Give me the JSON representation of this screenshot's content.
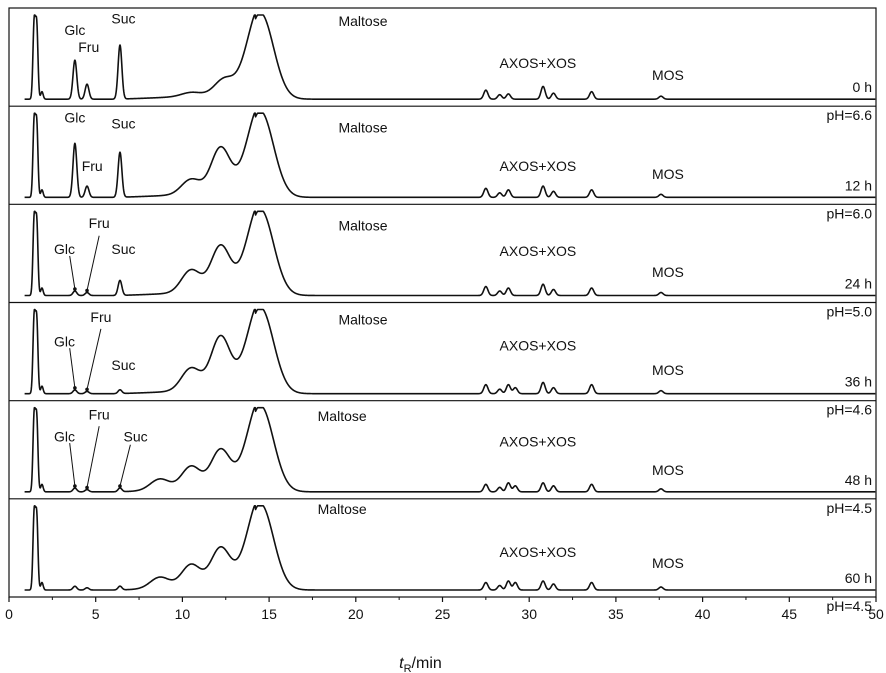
{
  "chart_data": {
    "type": "line",
    "xlabel": {
      "main": "t",
      "sub": "R",
      "unit": "/min"
    },
    "xlim": [
      0,
      50
    ],
    "x_ticks": [
      0,
      5,
      10,
      15,
      20,
      25,
      30,
      35,
      40,
      45,
      50
    ],
    "grid": false,
    "line_color": "#111111",
    "panels": [
      {
        "time_label": "0 h",
        "ph_label": "pH=6.6",
        "peaks": [
          [
            1.45,
            1.0
          ],
          [
            1.6,
            0.96
          ],
          [
            1.9,
            0.1
          ],
          [
            3.8,
            0.52
          ],
          [
            4.5,
            0.2
          ],
          [
            6.4,
            0.72
          ],
          [
            10.5,
            0.05
          ],
          [
            12.4,
            0.2
          ],
          [
            14.5,
            1.15
          ],
          [
            27.5,
            0.12
          ],
          [
            28.3,
            0.06
          ],
          [
            28.8,
            0.07
          ],
          [
            30.8,
            0.17
          ],
          [
            31.4,
            0.08
          ],
          [
            33.6,
            0.1
          ],
          [
            37.6,
            0.04
          ]
        ],
        "labels": [
          {
            "id": "glc",
            "text": "Glc",
            "x": 3.8,
            "y": 0.82
          },
          {
            "id": "fru",
            "text": "Fru",
            "x": 4.6,
            "y": 0.62
          },
          {
            "id": "suc",
            "text": "Suc",
            "x": 6.6,
            "y": 0.96
          },
          {
            "id": "maltose",
            "text": "Maltose",
            "x": 19.0,
            "y": 0.93
          },
          {
            "id": "axos",
            "text": "AXOS+XOS",
            "x": 30.5,
            "y": 0.43
          },
          {
            "id": "mos",
            "text": "MOS",
            "x": 38.0,
            "y": 0.29
          }
        ]
      },
      {
        "time_label": "12 h",
        "ph_label": "pH=6.0",
        "peaks": [
          [
            1.45,
            1.0
          ],
          [
            1.6,
            0.96
          ],
          [
            1.9,
            0.1
          ],
          [
            3.8,
            0.72
          ],
          [
            4.5,
            0.15
          ],
          [
            6.4,
            0.6
          ],
          [
            10.5,
            0.2
          ],
          [
            12.2,
            0.6
          ],
          [
            14.5,
            1.15
          ],
          [
            27.5,
            0.12
          ],
          [
            28.3,
            0.06
          ],
          [
            28.8,
            0.1
          ],
          [
            30.8,
            0.15
          ],
          [
            31.4,
            0.08
          ],
          [
            33.6,
            0.1
          ],
          [
            37.6,
            0.04
          ]
        ],
        "labels": [
          {
            "id": "glc",
            "text": "Glc",
            "x": 3.8,
            "y": 0.95
          },
          {
            "id": "fru",
            "text": "Fru",
            "x": 4.8,
            "y": 0.37
          },
          {
            "id": "suc",
            "text": "Suc",
            "x": 6.6,
            "y": 0.88
          },
          {
            "id": "maltose",
            "text": "Maltose",
            "x": 19.0,
            "y": 0.83
          },
          {
            "id": "axos",
            "text": "AXOS+XOS",
            "x": 30.5,
            "y": 0.37
          },
          {
            "id": "mos",
            "text": "MOS",
            "x": 38.0,
            "y": 0.28
          }
        ]
      },
      {
        "time_label": "24 h",
        "ph_label": "pH=5.0",
        "peaks": [
          [
            1.45,
            1.0
          ],
          [
            1.6,
            0.96
          ],
          [
            1.9,
            0.1
          ],
          [
            3.8,
            0.06
          ],
          [
            4.5,
            0.04
          ],
          [
            6.4,
            0.2
          ],
          [
            10.5,
            0.3
          ],
          [
            12.2,
            0.6
          ],
          [
            14.5,
            1.15
          ],
          [
            27.5,
            0.12
          ],
          [
            28.3,
            0.06
          ],
          [
            28.8,
            0.1
          ],
          [
            30.8,
            0.15
          ],
          [
            31.4,
            0.08
          ],
          [
            33.6,
            0.1
          ],
          [
            37.6,
            0.04
          ]
        ],
        "labels": [
          {
            "id": "glc",
            "text": "Glc",
            "x": 3.2,
            "y": 0.55
          },
          {
            "id": "fru",
            "text": "Fru",
            "x": 5.2,
            "y": 0.86
          },
          {
            "id": "suc",
            "text": "Suc",
            "x": 6.6,
            "y": 0.55
          },
          {
            "id": "maltose",
            "text": "Maltose",
            "x": 19.0,
            "y": 0.83
          },
          {
            "id": "axos",
            "text": "AXOS+XOS",
            "x": 30.5,
            "y": 0.53
          },
          {
            "id": "mos",
            "text": "MOS",
            "x": 38.0,
            "y": 0.28
          }
        ],
        "arrows": [
          [
            3.5,
            0.47,
            3.8,
            0.06
          ],
          [
            5.2,
            0.71,
            4.5,
            0.04
          ]
        ]
      },
      {
        "time_label": "36 h",
        "ph_label": "pH=4.6",
        "peaks": [
          [
            1.45,
            1.0
          ],
          [
            1.6,
            0.96
          ],
          [
            1.9,
            0.1
          ],
          [
            3.8,
            0.05
          ],
          [
            4.5,
            0.03
          ],
          [
            6.4,
            0.05
          ],
          [
            10.5,
            0.3
          ],
          [
            12.2,
            0.7
          ],
          [
            14.5,
            1.15
          ],
          [
            27.5,
            0.12
          ],
          [
            28.3,
            0.06
          ],
          [
            28.8,
            0.12
          ],
          [
            29.2,
            0.08
          ],
          [
            30.8,
            0.15
          ],
          [
            31.4,
            0.08
          ],
          [
            33.6,
            0.12
          ],
          [
            37.6,
            0.04
          ]
        ],
        "labels": [
          {
            "id": "glc",
            "text": "Glc",
            "x": 3.2,
            "y": 0.62
          },
          {
            "id": "fru",
            "text": "Fru",
            "x": 5.3,
            "y": 0.91
          },
          {
            "id": "suc",
            "text": "Suc",
            "x": 6.6,
            "y": 0.34
          },
          {
            "id": "maltose",
            "text": "Maltose",
            "x": 19.0,
            "y": 0.88
          },
          {
            "id": "axos",
            "text": "AXOS+XOS",
            "x": 30.5,
            "y": 0.57
          },
          {
            "id": "mos",
            "text": "MOS",
            "x": 38.0,
            "y": 0.28
          }
        ],
        "arrows": [
          [
            3.5,
            0.54,
            3.8,
            0.05
          ],
          [
            5.3,
            0.77,
            4.5,
            0.03
          ]
        ]
      },
      {
        "time_label": "48 h",
        "ph_label": "pH=4.5",
        "peaks": [
          [
            1.45,
            1.0
          ],
          [
            1.6,
            0.96
          ],
          [
            1.9,
            0.1
          ],
          [
            3.8,
            0.05
          ],
          [
            4.5,
            0.03
          ],
          [
            6.4,
            0.05
          ],
          [
            8.7,
            0.15
          ],
          [
            10.5,
            0.3
          ],
          [
            12.2,
            0.5
          ],
          [
            14.5,
            1.15
          ],
          [
            27.5,
            0.1
          ],
          [
            28.3,
            0.06
          ],
          [
            28.8,
            0.12
          ],
          [
            29.2,
            0.08
          ],
          [
            30.8,
            0.12
          ],
          [
            31.4,
            0.08
          ],
          [
            33.6,
            0.1
          ],
          [
            37.6,
            0.04
          ]
        ],
        "labels": [
          {
            "id": "glc",
            "text": "Glc",
            "x": 3.2,
            "y": 0.66
          },
          {
            "id": "fru",
            "text": "Fru",
            "x": 5.2,
            "y": 0.92
          },
          {
            "id": "suc",
            "text": "Suc",
            "x": 7.3,
            "y": 0.66
          },
          {
            "id": "maltose",
            "text": "Maltose",
            "x": 17.8,
            "y": 0.9
          },
          {
            "id": "axos",
            "text": "AXOS+XOS",
            "x": 30.5,
            "y": 0.6
          },
          {
            "id": "mos",
            "text": "MOS",
            "x": 38.0,
            "y": 0.26
          }
        ],
        "arrows": [
          [
            3.5,
            0.58,
            3.8,
            0.05
          ],
          [
            5.2,
            0.78,
            4.5,
            0.03
          ],
          [
            7.0,
            0.56,
            6.4,
            0.05
          ]
        ]
      },
      {
        "time_label": "60 h",
        "ph_label": "pH=4.5",
        "peaks": [
          [
            1.45,
            1.0
          ],
          [
            1.6,
            0.96
          ],
          [
            1.9,
            0.1
          ],
          [
            3.8,
            0.05
          ],
          [
            4.5,
            0.03
          ],
          [
            6.4,
            0.05
          ],
          [
            8.7,
            0.15
          ],
          [
            10.5,
            0.3
          ],
          [
            12.2,
            0.5
          ],
          [
            14.5,
            1.15
          ],
          [
            27.5,
            0.1
          ],
          [
            28.3,
            0.06
          ],
          [
            28.8,
            0.12
          ],
          [
            29.2,
            0.1
          ],
          [
            30.8,
            0.12
          ],
          [
            31.4,
            0.08
          ],
          [
            33.6,
            0.1
          ],
          [
            37.6,
            0.04
          ]
        ],
        "labels": [
          {
            "id": "maltose",
            "text": "Maltose",
            "x": 17.8,
            "y": 0.96
          },
          {
            "id": "axos",
            "text": "AXOS+XOS",
            "x": 30.5,
            "y": 0.45
          },
          {
            "id": "mos",
            "text": "MOS",
            "x": 38.0,
            "y": 0.32
          }
        ]
      }
    ]
  }
}
